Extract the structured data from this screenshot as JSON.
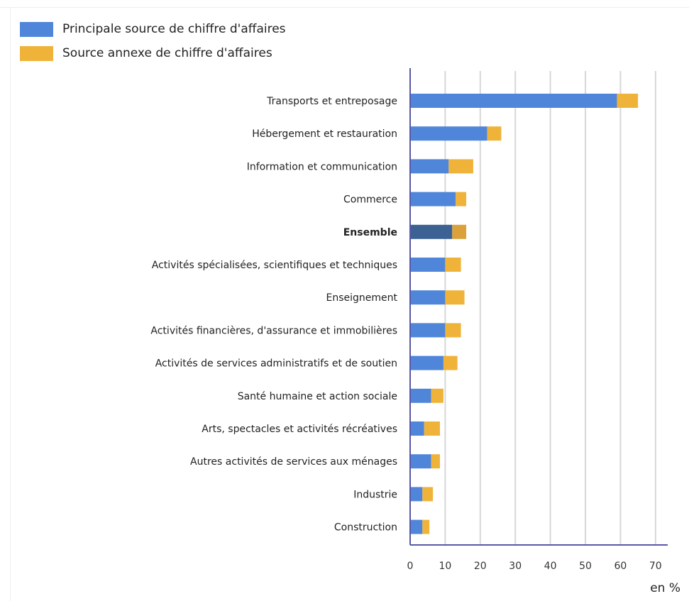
{
  "colors": {
    "main": "#4f86d9",
    "secondary": "#f0b33a",
    "highlight_main": "#3c6294",
    "highlight_secondary": "#dba23c",
    "axis": "#5858a8",
    "grid": "#d7d7d7"
  },
  "legend": {
    "items": [
      {
        "label": "Principale source de chiffre d'affaires",
        "color": "#4f86d9"
      },
      {
        "label": "Source annexe de chiffre d'affaires",
        "color": "#f0b33a"
      }
    ]
  },
  "chart_data": {
    "type": "bar",
    "orientation": "horizontal",
    "stacked": true,
    "categories": [
      "Transports et entreposage",
      "Hébergement et restauration",
      "Information et communication",
      "Commerce",
      "Ensemble",
      "Activités spécialisées, scientifiques et techniques",
      "Enseignement",
      "Activités financières, d'assurance et immobilières",
      "Activités de services administratifs et de soutien",
      "Santé humaine et action sociale",
      "Arts, spectacles et activités récréatives",
      "Autres activités de services aux ménages",
      "Industrie",
      "Construction"
    ],
    "highlighted_category": "Ensemble",
    "series": [
      {
        "name": "Principale source de chiffre d'affaires",
        "values": [
          59,
          22,
          11,
          13,
          12,
          10,
          10,
          10,
          9.5,
          6,
          4,
          6,
          3.5,
          3.5
        ]
      },
      {
        "name": "Source annexe de chiffre d'affaires",
        "values": [
          6,
          4,
          7,
          3,
          4,
          4.5,
          5.5,
          4.5,
          4,
          3.5,
          4.5,
          2.5,
          3,
          2
        ]
      }
    ],
    "xlim": [
      0,
      70
    ],
    "xticks": [
      0,
      10,
      20,
      30,
      40,
      50,
      60,
      70
    ],
    "xlabel": "en %",
    "grid": "vertical",
    "legend_position": "top-left"
  }
}
